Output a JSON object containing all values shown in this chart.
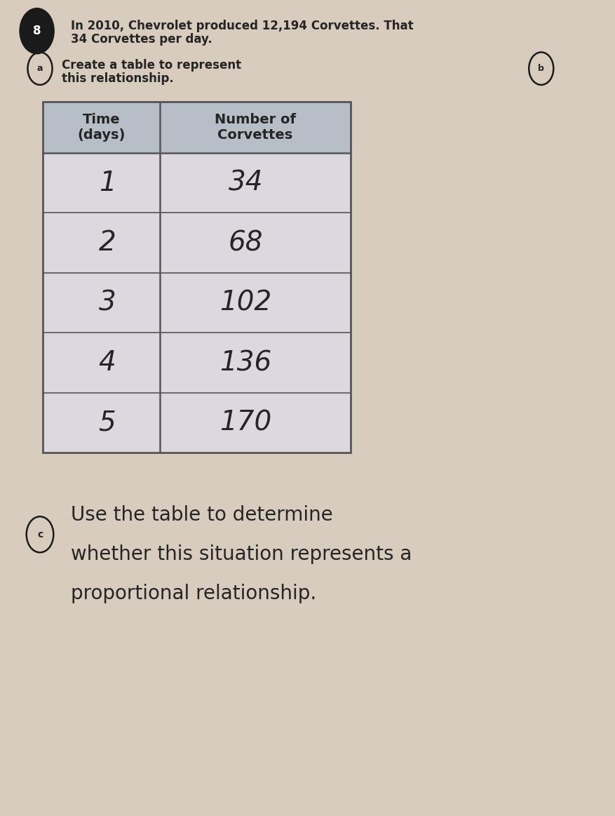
{
  "background_color": "#d8ccbe",
  "paper_color": "#e8dfd0",
  "title_text_line1": "In 2010, Chevrolet produced 12,194 Corvettes. That",
  "title_text_line2": "34 Corvettes per day.",
  "part_a_label": "a",
  "part_a_text": "Create a table to represent\nthis relationship.",
  "part_b_label": "b",
  "part_c_label": "c",
  "part_c_line1": "Use the table to determine",
  "part_c_line2": "whether this situation represents a",
  "part_c_line3": "proportional relationship.",
  "col1_header": "Time\n(days)",
  "col2_header": "Number of\nCorvettes",
  "days": [
    "1",
    "2",
    "3",
    "4",
    "5"
  ],
  "corvettes": [
    "34",
    "68",
    "102",
    "136",
    "170"
  ],
  "header_bg": "#b8bec8",
  "cell_bg": "#ddd8e0",
  "text_color_dark": "#252525",
  "number_font_size": 28,
  "header_font_size": 14,
  "title_font_size": 12,
  "partc_font_size": 20
}
